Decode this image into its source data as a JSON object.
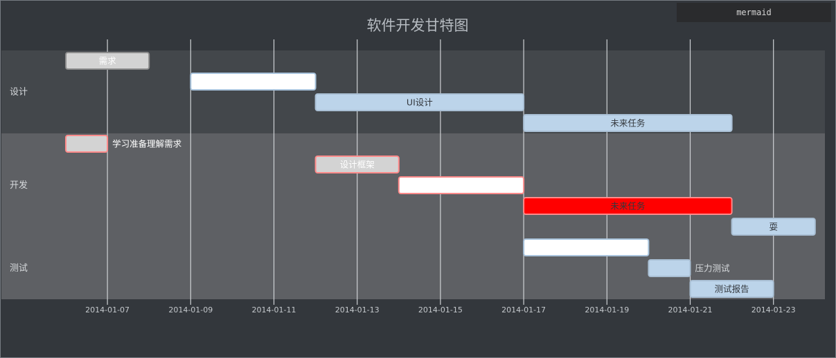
{
  "badge": "mermaid",
  "chart_data": {
    "type": "gantt",
    "title": "软件开发甘特图",
    "colors": {
      "background": "#33373c",
      "section_band_1": "#43474b",
      "section_band_2": "#5e6064",
      "grid": "#cfd2d5",
      "title": "#b7bcc2",
      "tick_label": "#c5c9cd",
      "section_label": "#d6d9dc"
    },
    "x_start": "2014-01-06",
    "x_end": "2014-01-24",
    "ticks": [
      "2014-01-07",
      "2014-01-09",
      "2014-01-11",
      "2014-01-13",
      "2014-01-15",
      "2014-01-17",
      "2014-01-19",
      "2014-01-21",
      "2014-01-23"
    ],
    "sections": [
      {
        "name": "设计",
        "rows": 4
      },
      {
        "name": "开发",
        "rows": 5
      },
      {
        "name": "测试",
        "rows": 3
      }
    ],
    "tasks": [
      {
        "label": "需求",
        "start": "2014-01-06",
        "end": "2014-01-08",
        "style": "done",
        "label_pos": "inside",
        "label_color": "#ffffff"
      },
      {
        "label": "",
        "start": "2014-01-09",
        "end": "2014-01-12",
        "style": "active",
        "label_pos": "inside"
      },
      {
        "label": "UI设计",
        "start": "2014-01-12",
        "end": "2014-01-17",
        "style": "normal",
        "label_pos": "inside"
      },
      {
        "label": "未来任务",
        "start": "2014-01-17",
        "end": "2014-01-22",
        "style": "normal",
        "label_pos": "inside"
      },
      {
        "label": "学习准备理解需求",
        "start": "2014-01-06",
        "end": "2014-01-07",
        "style": "crit_done",
        "label_pos": "right",
        "label_color": "#ffffff"
      },
      {
        "label": "设计框架",
        "start": "2014-01-12",
        "end": "2014-01-14",
        "style": "crit_done",
        "label_pos": "inside",
        "label_color": "#ffffff"
      },
      {
        "label": "",
        "start": "2014-01-14",
        "end": "2014-01-17",
        "style": "crit_active",
        "label_pos": "inside"
      },
      {
        "label": "未来任务",
        "start": "2014-01-17",
        "end": "2014-01-22",
        "style": "crit",
        "label_pos": "inside"
      },
      {
        "label": "耍",
        "start": "2014-01-22",
        "end": "2014-01-24",
        "style": "normal",
        "label_pos": "inside"
      },
      {
        "label": "",
        "start": "2014-01-17",
        "end": "2014-01-20",
        "style": "active",
        "label_pos": "inside"
      },
      {
        "label": "压力测试",
        "start": "2014-01-20",
        "end": "2014-01-21",
        "style": "normal",
        "label_pos": "right",
        "label_color": "#d6d9dc"
      },
      {
        "label": "测试报告",
        "start": "2014-01-21",
        "end": "2014-01-23",
        "style": "normal",
        "label_pos": "inside"
      }
    ]
  }
}
